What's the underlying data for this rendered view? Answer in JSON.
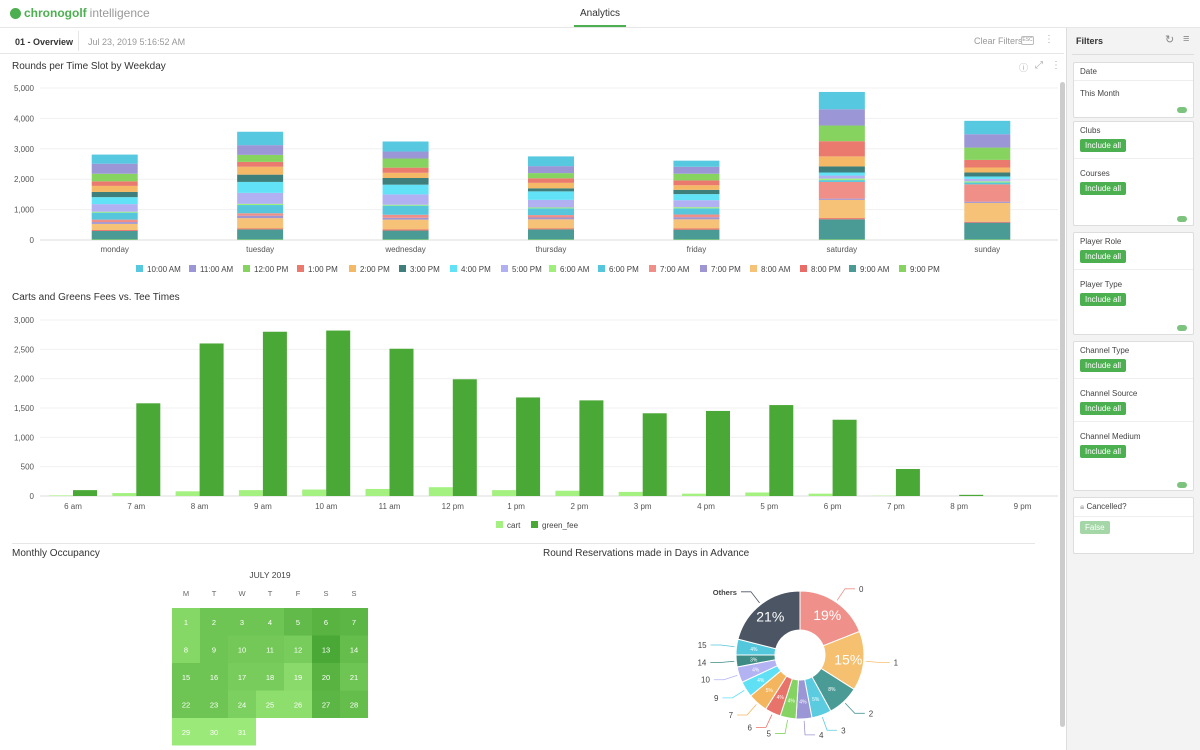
{
  "app": {
    "brand": "chronogolf",
    "brand_suffix": "intelligence",
    "tab": "Analytics"
  },
  "subbar": {
    "page": "01 - Overview",
    "timestamp": "Jul 23, 2019 5:16:52 AM",
    "clear_filters": "Clear Filters",
    "kbd": "ESC"
  },
  "colors": {
    "accent": "#4caf50",
    "cart": "#a4f080",
    "green_fee": "#4aa836"
  },
  "filters": {
    "title": "Filters",
    "date_label": "Date",
    "date_value": "This Month",
    "clubs": "Clubs",
    "courses": "Courses",
    "player_role": "Player Role",
    "player_type": "Player Type",
    "channel_type": "Channel Type",
    "channel_source": "Channel Source",
    "channel_medium": "Channel Medium",
    "include_all": "Include all",
    "cancelled": "Cancelled?",
    "cancelled_value": "False"
  },
  "sections": {
    "rounds_title": "Rounds per Time Slot by Weekday",
    "fees_title": "Carts and Greens Fees vs. Tee Times",
    "occupancy_title": "Monthly Occupancy",
    "advance_title": "Round Reservations made in Days in Advance"
  },
  "chart_data": [
    {
      "type": "bar",
      "stacked": true,
      "title": "Rounds per Time Slot by Weekday",
      "categories": [
        "monday",
        "tuesday",
        "wednesday",
        "thursday",
        "friday",
        "saturday",
        "sunday"
      ],
      "ylim": [
        0,
        5000
      ],
      "yticks": [
        "0",
        "1,000",
        "2,000",
        "3,000",
        "4,000",
        "5,000"
      ],
      "legend": "bottom",
      "series": [
        {
          "name": "10:00 AM",
          "color": "#56c8e0",
          "values": [
            300,
            440,
            330,
            320,
            200,
            570,
            440
          ]
        },
        {
          "name": "11:00 AM",
          "color": "#9b96d6",
          "values": [
            330,
            320,
            230,
            230,
            230,
            535,
            440
          ]
        },
        {
          "name": "12:00 PM",
          "color": "#86d35f",
          "values": [
            250,
            230,
            300,
            170,
            220,
            515,
            405
          ]
        },
        {
          "name": "1:00 PM",
          "color": "#eb7a6e",
          "values": [
            150,
            160,
            170,
            150,
            160,
            500,
            250
          ]
        },
        {
          "name": "2:00 PM",
          "color": "#f5b867",
          "values": [
            200,
            260,
            170,
            180,
            150,
            330,
            165
          ]
        },
        {
          "name": "3:00 PM",
          "color": "#3e7f7b",
          "values": [
            170,
            240,
            220,
            100,
            140,
            200,
            130
          ]
        },
        {
          "name": "4:00 PM",
          "color": "#62e2f7",
          "values": [
            230,
            360,
            320,
            280,
            200,
            100,
            80
          ]
        },
        {
          "name": "5:00 PM",
          "color": "#b1b0f2",
          "values": [
            250,
            360,
            340,
            250,
            230,
            100,
            80
          ]
        },
        {
          "name": "6:00 AM",
          "color": "#9ef07a",
          "values": [
            30,
            40,
            30,
            30,
            40,
            50,
            40
          ]
        },
        {
          "name": "6:00 PM",
          "color": "#55c6dc",
          "values": [
            230,
            270,
            300,
            220,
            200,
            60,
            60
          ]
        },
        {
          "name": "7:00 AM",
          "color": "#f08f88",
          "values": [
            80,
            80,
            100,
            80,
            90,
            550,
            570
          ]
        },
        {
          "name": "7:00 PM",
          "color": "#9e95d3",
          "values": [
            60,
            80,
            60,
            60,
            70,
            40,
            40
          ]
        },
        {
          "name": "8:00 AM",
          "color": "#f5c277",
          "values": [
            200,
            340,
            320,
            300,
            300,
            600,
            620
          ]
        },
        {
          "name": "8:00 PM",
          "color": "#e96d66",
          "values": [
            30,
            30,
            40,
            30,
            40,
            40,
            30
          ]
        },
        {
          "name": "9:00 AM",
          "color": "#4a9a96",
          "values": [
            280,
            330,
            290,
            330,
            320,
            660,
            550
          ]
        },
        {
          "name": "9:00 PM",
          "color": "#86d35f",
          "values": [
            20,
            20,
            20,
            20,
            20,
            20,
            20
          ]
        }
      ]
    },
    {
      "type": "bar",
      "title": "Carts and Greens Fees vs. Tee Times",
      "categories": [
        "6 am",
        "7 am",
        "8 am",
        "9 am",
        "10 am",
        "11 am",
        "12 pm",
        "1 pm",
        "2 pm",
        "3 pm",
        "4 pm",
        "5 pm",
        "6 pm",
        "7 pm",
        "8 pm",
        "9 pm"
      ],
      "ylim": [
        0,
        3000
      ],
      "yticks": [
        "0",
        "500",
        "1,000",
        "1,500",
        "2,000",
        "2,500",
        "3,000"
      ],
      "legend": "bottom",
      "series": [
        {
          "name": "cart",
          "color": "#a4f080",
          "values": [
            10,
            50,
            80,
            100,
            110,
            120,
            150,
            100,
            90,
            70,
            40,
            60,
            40,
            5,
            0,
            0
          ]
        },
        {
          "name": "green_fee",
          "color": "#4aa836",
          "values": [
            100,
            1580,
            2600,
            2800,
            2820,
            2510,
            1990,
            1680,
            1630,
            1410,
            1450,
            1550,
            1300,
            460,
            20,
            0
          ]
        }
      ]
    },
    {
      "type": "heatmap",
      "title": "Monthly Occupancy",
      "month": "JULY 2019",
      "weekdays": [
        "M",
        "T",
        "W",
        "T",
        "F",
        "S",
        "S"
      ],
      "first_weekday_index": 0,
      "days": [
        0.35,
        0.6,
        0.6,
        0.6,
        0.75,
        0.85,
        0.8,
        0.35,
        0.6,
        0.55,
        0.55,
        0.5,
        1.0,
        0.7,
        0.6,
        0.6,
        0.5,
        0.5,
        0.3,
        0.85,
        0.6,
        0.6,
        0.6,
        0.45,
        0.25,
        0.25,
        0.8,
        0.7,
        0.1,
        0.1,
        0.1
      ]
    },
    {
      "type": "pie",
      "donut": true,
      "title": "Round Reservations made in Days in Advance",
      "slices": [
        {
          "label": "0",
          "value": 19,
          "text": "19%",
          "color": "#f0908a"
        },
        {
          "label": "1",
          "value": 15,
          "text": "15%",
          "color": "#f5c06f"
        },
        {
          "label": "2",
          "value": 8,
          "text": "8%",
          "color": "#4a9a96"
        },
        {
          "label": "3",
          "value": 5,
          "text": "5%",
          "color": "#5bcbe0"
        },
        {
          "label": "4",
          "value": 4,
          "text": "4%",
          "color": "#9b96d6"
        },
        {
          "label": "5",
          "value": 4,
          "text": "4%",
          "color": "#85d463"
        },
        {
          "label": "6",
          "value": 4,
          "text": "4%",
          "color": "#e8736a"
        },
        {
          "label": "7",
          "value": 5,
          "text": "5%",
          "color": "#f3b65f"
        },
        {
          "label": "9",
          "value": 4,
          "text": "4%",
          "color": "#5fe0f5"
        },
        {
          "label": "10",
          "value": 4,
          "text": "4%",
          "color": "#b3b2f2"
        },
        {
          "label": "14",
          "value": 3,
          "text": "3%",
          "color": "#3e8a84"
        },
        {
          "label": "15",
          "value": 4,
          "text": "4%",
          "color": "#53c7dc"
        },
        {
          "label": "Others",
          "value": 21,
          "text": "21%",
          "color": "#4b5563"
        }
      ]
    }
  ]
}
